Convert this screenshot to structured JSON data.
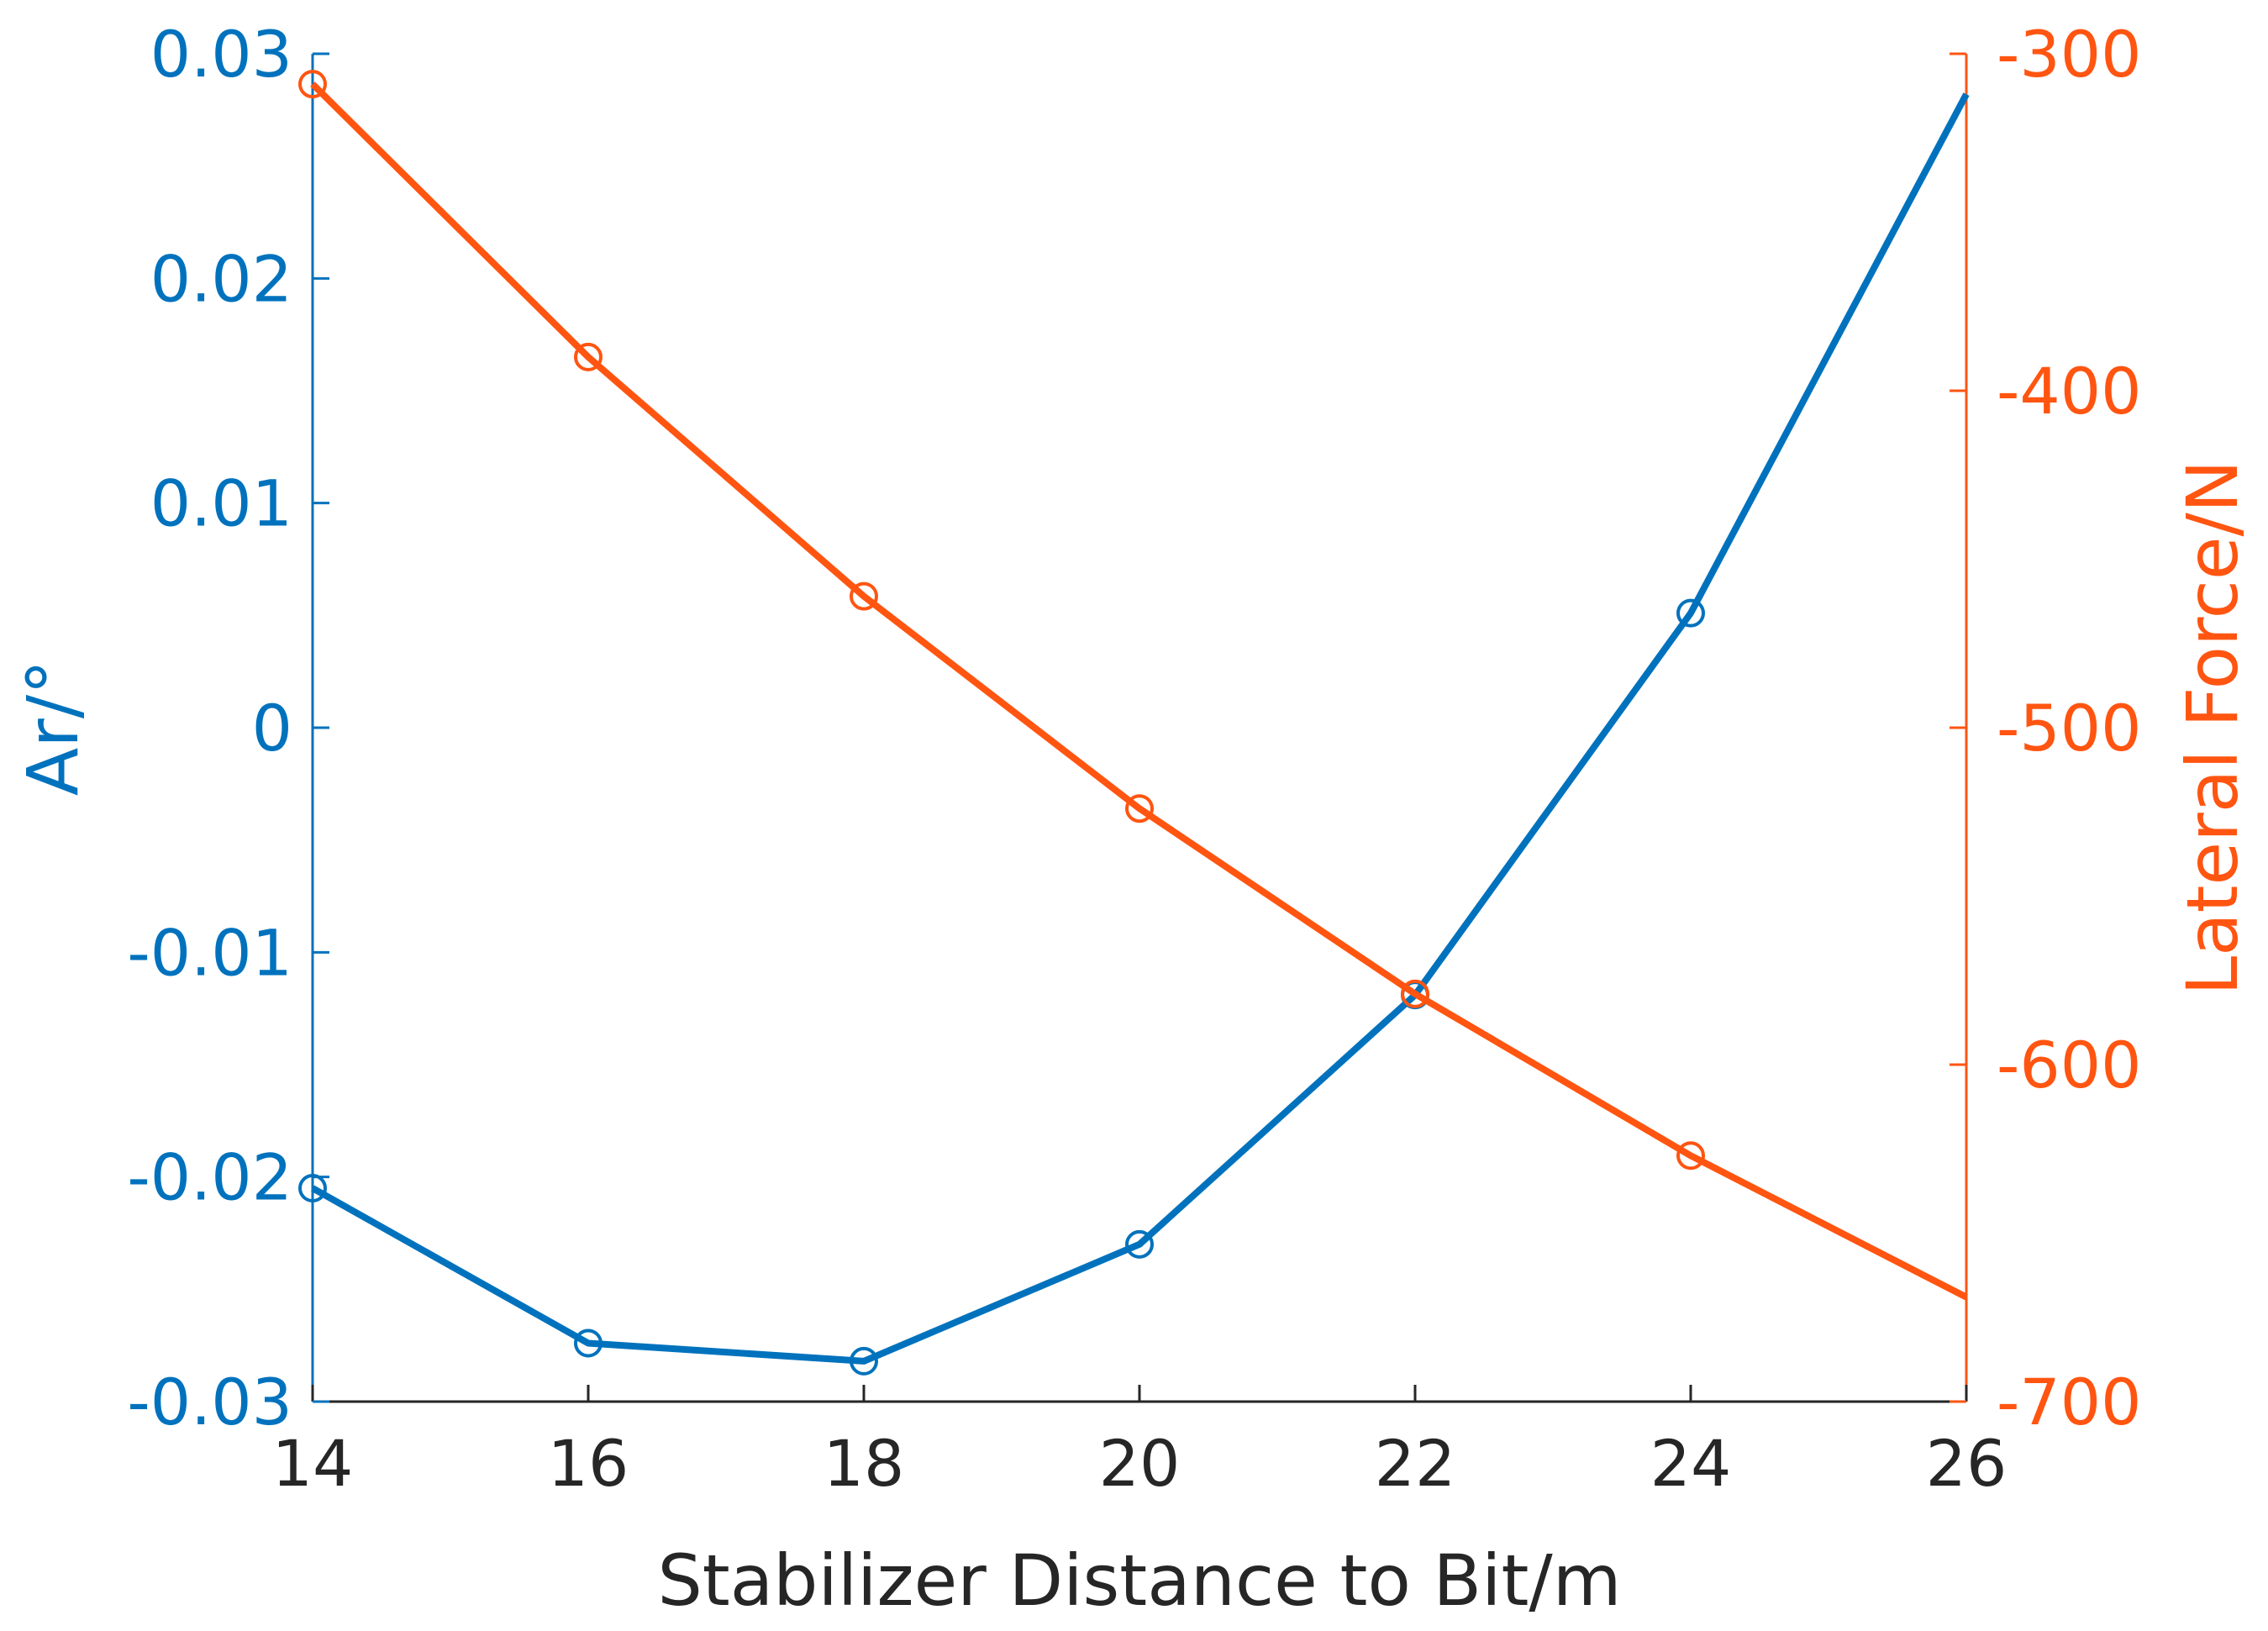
{
  "chart_data": {
    "type": "line",
    "title": "",
    "xlabel": "Stabilizer Distance to Bit/m",
    "ylabel_left": "Ar/°",
    "ylabel_right": "Lateral Force/N",
    "xlim": [
      14,
      26
    ],
    "ylim_left": [
      -0.03,
      0.03
    ],
    "ylim_right": [
      -700,
      -300
    ],
    "x_ticks": [
      "14",
      "16",
      "18",
      "20",
      "22",
      "24",
      "26"
    ],
    "y_ticks_left": [
      "-0.03",
      "-0.02",
      "-0.01",
      "0",
      "0.01",
      "0.02",
      "0.03"
    ],
    "y_ticks_right": [
      "-700",
      "-600",
      "-500",
      "-400",
      "-300"
    ],
    "grid": false,
    "series": [
      {
        "name": "Ar",
        "axis": "left",
        "color": "#0072BD",
        "x": [
          14,
          16,
          18,
          20,
          22,
          24,
          26
        ],
        "values": [
          -0.0205,
          -0.0274,
          -0.0282,
          -0.023,
          -0.0119,
          0.0051,
          0.0282
        ],
        "markers": [
          true,
          true,
          true,
          true,
          true,
          true,
          false
        ]
      },
      {
        "name": "Lateral Force",
        "axis": "right",
        "color": "#FF5511",
        "x": [
          14,
          16,
          18,
          20,
          22,
          24,
          26
        ],
        "values": [
          -309,
          -390,
          -461,
          -524,
          -579,
          -627,
          -669
        ],
        "markers": [
          true,
          true,
          true,
          true,
          true,
          true,
          false
        ]
      }
    ]
  }
}
